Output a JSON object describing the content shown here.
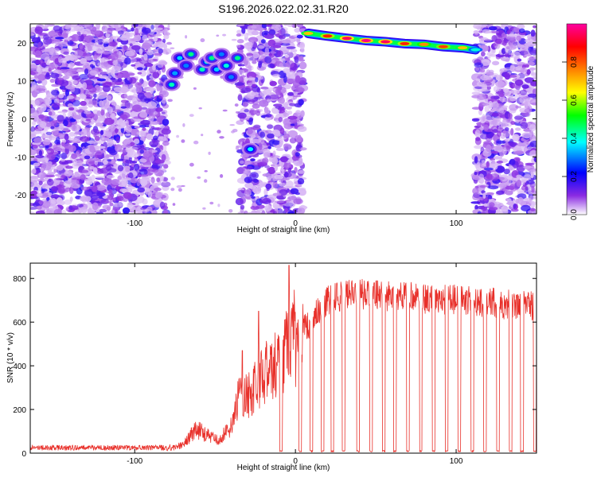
{
  "page_title": "S196.2026.022.02.31.R20",
  "chart_data": [
    {
      "type": "heatmap",
      "xlabel": "Height of straight line (km)",
      "ylabel": "Frequency (Hz)",
      "xlim": [
        -165,
        150
      ],
      "ylim": [
        -25,
        25
      ],
      "xticks": [
        -100,
        0,
        100
      ],
      "yticks": [
        -20,
        -10,
        0,
        10,
        20
      ],
      "colorbar": {
        "label": "Normalized spectral amplitude",
        "range": [
          0,
          1
        ],
        "ticks": [
          0.0,
          0.2,
          0.4,
          0.6,
          0.8
        ],
        "colors": [
          "#ffffff",
          "#8a2be2",
          "#0000ff",
          "#00ffff",
          "#00ff00",
          "#ffff00",
          "#ff8000",
          "#ff0000",
          "#ff00a0"
        ]
      },
      "noise_regions": [
        {
          "x_from": -165,
          "x_to": -80,
          "density": 0.9
        },
        {
          "x_from": -35,
          "x_to": 5,
          "density": 0.75
        },
        {
          "x_from": 112,
          "x_to": 150,
          "density": 0.8
        }
      ],
      "blobs": [
        {
          "x": -77,
          "y": 9,
          "v": 0.42
        },
        {
          "x": -75,
          "y": 12,
          "v": 0.32
        },
        {
          "x": -72,
          "y": 16,
          "v": 0.35
        },
        {
          "x": -68,
          "y": 14,
          "v": 0.3
        },
        {
          "x": -65,
          "y": 17,
          "v": 0.45
        },
        {
          "x": -58,
          "y": 13,
          "v": 0.42
        },
        {
          "x": -55,
          "y": 15,
          "v": 0.4
        },
        {
          "x": -52,
          "y": 16,
          "v": 0.45
        },
        {
          "x": -49,
          "y": 13,
          "v": 0.35
        },
        {
          "x": -46,
          "y": 17,
          "v": 0.3
        },
        {
          "x": -43,
          "y": 14,
          "v": 0.4
        },
        {
          "x": -40,
          "y": 11,
          "v": 0.3
        },
        {
          "x": -36,
          "y": 16,
          "v": 0.45
        },
        {
          "x": -28,
          "y": -8,
          "v": 0.38
        }
      ],
      "signal_line": {
        "x": [
          8,
          20,
          32,
          44,
          56,
          68,
          80,
          92,
          104,
          112
        ],
        "y": [
          22.5,
          21.8,
          21.2,
          20.6,
          20.3,
          19.8,
          19.6,
          19.0,
          18.7,
          18.2
        ],
        "v": [
          0.7,
          0.85,
          0.95,
          0.98,
          0.95,
          0.85,
          0.75,
          0.82,
          0.7,
          0.4
        ]
      }
    },
    {
      "type": "line",
      "xlabel": "Height of straight line (km)",
      "ylabel": "SNR (10 * v/v)",
      "xlim": [
        -165,
        150
      ],
      "ylim": [
        0,
        870
      ],
      "xticks": [
        -100,
        0,
        100
      ],
      "yticks": [
        0,
        200,
        400,
        600,
        800
      ],
      "color": "#e8302a",
      "envelope": {
        "x": [
          -165,
          -80,
          -70,
          -62,
          -55,
          -48,
          -40,
          -35,
          -30,
          -25,
          -20,
          -15,
          -10,
          -5,
          -1,
          0,
          5,
          10,
          15,
          20,
          30,
          40,
          50,
          60,
          80,
          100,
          120,
          135,
          150
        ],
        "y": [
          25,
          25,
          40,
          120,
          90,
          60,
          130,
          300,
          280,
          330,
          380,
          420,
          470,
          520,
          600,
          540,
          570,
          600,
          660,
          700,
          720,
          730,
          720,
          720,
          710,
          700,
          690,
          680,
          670
        ]
      },
      "dropouts": [
        -9,
        3,
        10,
        17,
        23,
        30,
        39,
        47,
        55,
        62,
        70,
        78,
        86,
        94,
        102,
        110,
        118,
        126,
        134,
        141,
        149
      ],
      "spikes": [
        {
          "x": -4,
          "y": 860
        },
        {
          "x": -23,
          "y": 650
        },
        {
          "x": -33,
          "y": 470
        }
      ]
    }
  ]
}
